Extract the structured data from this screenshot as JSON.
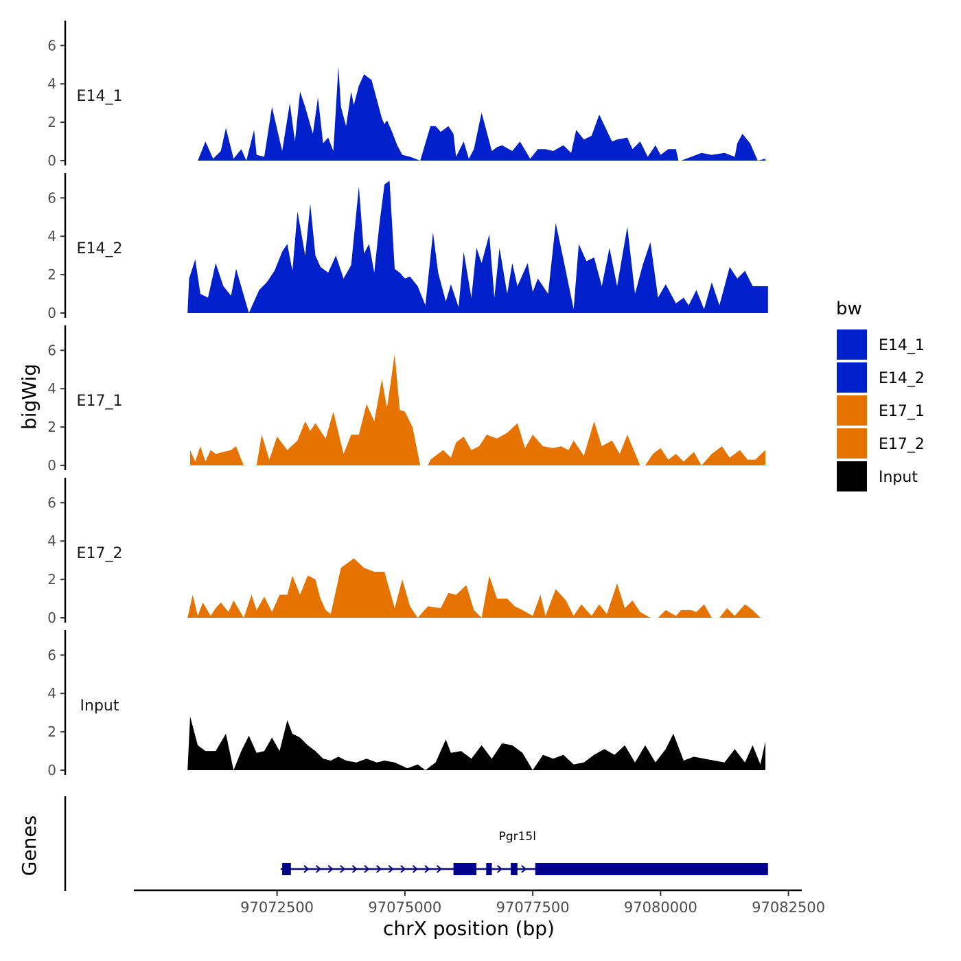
{
  "chart_data": {
    "type": "area",
    "ylabel": "bigWig",
    "xlabel": "chrX position (bp)",
    "ylim": [
      0,
      7.3
    ],
    "y_ticks": [
      0,
      2,
      4,
      6
    ],
    "y_tick_labels": [
      "0",
      "2",
      "4",
      "6"
    ],
    "xlim": [
      97069700,
      97082760
    ],
    "x_ticks": [
      97072500,
      97075000,
      97077500,
      97080000,
      97082500
    ],
    "x_tick_labels": [
      "97072500",
      "97075000",
      "97077500",
      "97080000",
      "97082500"
    ],
    "legend": {
      "title": "bw",
      "position": "right",
      "entries": [
        {
          "label": "E14_1",
          "color": "#0020CC"
        },
        {
          "label": "E14_2",
          "color": "#0020CC"
        },
        {
          "label": "E17_1",
          "color": "#E67300"
        },
        {
          "label": "E17_2",
          "color": "#E67300"
        },
        {
          "label": "Input",
          "color": "#000000"
        }
      ]
    },
    "series": [
      {
        "name": "E14_1",
        "color": "#0020CC",
        "x": [
          97070950,
          97071100,
          97071250,
          97071400,
          97071500,
          97071650,
          97071800,
          97071900,
          97072050,
          97072100,
          97072250,
          97072400,
          97072600,
          97072750,
          97072850,
          97072950,
          97073050,
          97073200,
          97073300,
          97073400,
          97073500,
          97073600,
          97073700,
          97073750,
          97073850,
          97073950,
          97074000,
          97074100,
          97074200,
          97074350,
          97074550,
          97074600,
          97074650,
          97074750,
          97074850,
          97074950,
          97075100,
          97075300,
          97075500,
          97075600,
          97075700,
          97075850,
          97075950,
          97076000,
          97076150,
          97076250,
          97076350,
          97076500,
          97076700,
          97076800,
          97076900,
          97077100,
          97077250,
          97077450,
          97077600,
          97077750,
          97077900,
          97078100,
          97078250,
          97078350,
          97078500,
          97078650,
          97078800,
          97079050,
          97079150,
          97079350,
          97079450,
          97079600,
          97079750,
          97079900,
          97080000,
          97080150,
          97080300,
          97080350,
          97080400,
          97080600,
          97080800,
          97081000,
          97081250,
          97081450,
          97081500,
          97081600,
          97081750,
          97081900,
          97082050
        ],
        "y": [
          0,
          1.0,
          0.1,
          0.5,
          1.7,
          0.1,
          0.6,
          0,
          1.6,
          0.3,
          0.2,
          2.8,
          0.5,
          3.0,
          1.0,
          3.6,
          2.8,
          1.4,
          3.3,
          0.9,
          1.2,
          0.5,
          4.9,
          2.8,
          1.8,
          3.6,
          2.9,
          3.9,
          4.5,
          4.2,
          2.2,
          1.9,
          2.1,
          1.5,
          0.8,
          0.3,
          0.2,
          0,
          1.8,
          1.8,
          1.5,
          1.8,
          1.4,
          0.2,
          1.0,
          0.1,
          0.6,
          2.5,
          0.5,
          0.7,
          0.8,
          0.5,
          1.0,
          0.1,
          0.6,
          0.6,
          0.5,
          0.8,
          0.4,
          1.6,
          1.1,
          1.3,
          2.4,
          1.0,
          1.1,
          1.2,
          0.6,
          1.0,
          0.2,
          0.8,
          0.3,
          0.6,
          0.6,
          0,
          0,
          0.2,
          0.4,
          0.3,
          0.4,
          0.2,
          0.9,
          1.4,
          0.9,
          0,
          0.1
        ]
      },
      {
        "name": "E14_2",
        "color": "#0020CC",
        "x": [
          97070750,
          97070780,
          97070900,
          97071000,
          97071150,
          97071300,
          97071450,
          97071600,
          97071700,
          97071950,
          97072150,
          97072300,
          97072450,
          97072600,
          97072700,
          97072800,
          97072900,
          97073050,
          97073150,
          97073250,
          97073350,
          97073500,
          97073650,
          97073800,
          97073950,
          97074100,
          97074200,
          97074300,
          97074400,
          97074500,
          97074600,
          97074700,
          97074800,
          97074900,
          97075000,
          97075100,
          97075250,
          97075400,
          97075550,
          97075650,
          97075800,
          97075900,
          97076050,
          97076150,
          97076300,
          97076400,
          97076500,
          97076650,
          97076750,
          97076850,
          97077000,
          97077100,
          97077200,
          97077400,
          97077500,
          97077600,
          97077800,
          97077950,
          97078100,
          97078300,
          97078400,
          97078550,
          97078700,
          97078850,
          97079000,
          97079150,
          97079350,
          97079500,
          97079650,
          97079800,
          97079950,
          97080100,
          97080300,
          97080450,
          97080550,
          97080700,
          97080850,
          97081000,
          97081150,
          97081350,
          97081500,
          97081650,
          97081800,
          97081950,
          97082100
        ],
        "y": [
          0,
          1.8,
          2.8,
          1.0,
          0.8,
          2.6,
          1.4,
          0.9,
          2.3,
          0,
          1.2,
          1.6,
          2.2,
          3.2,
          3.6,
          2.2,
          5.3,
          3.0,
          5.7,
          3.0,
          2.4,
          2.1,
          3.0,
          1.8,
          2.5,
          6.6,
          3.1,
          3.6,
          2.1,
          4.6,
          6.7,
          6.9,
          2.3,
          2.1,
          1.8,
          1.9,
          1.4,
          0.4,
          4.2,
          2.1,
          0.6,
          1.5,
          0.3,
          3.2,
          0.8,
          3.4,
          2.6,
          4.1,
          0.8,
          3.4,
          1.0,
          2.6,
          1.4,
          2.6,
          1.1,
          1.8,
          1.0,
          4.7,
          2.8,
          0.2,
          3.6,
          2.7,
          2.9,
          1.4,
          3.4,
          1.4,
          4.5,
          1.0,
          2.5,
          3.7,
          0.8,
          1.5,
          0.5,
          0.8,
          0.4,
          1.2,
          0.2,
          1.6,
          0.4,
          2.4,
          1.8,
          2.2,
          1.4,
          1.4,
          1.4
        ]
      },
      {
        "name": "E17_1",
        "color": "#E67300",
        "x": [
          97070800,
          97070900,
          97071000,
          97071100,
          97071200,
          97071300,
          97071450,
          97071600,
          97071700,
          97071800,
          97071850,
          97072100,
          97072200,
          97072350,
          97072500,
          97072700,
          97072900,
          97073050,
          97073150,
          97073250,
          97073450,
          97073600,
          97073800,
          97073950,
          97074100,
          97074250,
          97074400,
          97074550,
          97074650,
          97074800,
          97074900,
          97075000,
          97075150,
          97075300,
          97075450,
          97075500,
          97075750,
          97075900,
          97076000,
          97076150,
          97076300,
          97076450,
          97076600,
          97076800,
          97077000,
          97077200,
          97077350,
          97077500,
          97077700,
          97077900,
          97078050,
          97078200,
          97078300,
          97078500,
          97078700,
          97078850,
          97079050,
          97079200,
          97079350,
          97079600,
          97079700,
          97079850,
          97080000,
          97080150,
          97080300,
          97080450,
          97080650,
          97080800,
          97081000,
          97081200,
          97081350,
          97081550,
          97081700,
          97081850,
          97082050
        ],
        "y": [
          0.8,
          0.2,
          1.0,
          0.2,
          0.8,
          0.6,
          0.7,
          0.8,
          1.0,
          0.3,
          0,
          0,
          1.6,
          0.3,
          1.5,
          0.8,
          1.3,
          2.3,
          1.8,
          2.2,
          1.4,
          2.8,
          0.6,
          1.6,
          1.6,
          3.2,
          2.3,
          4.5,
          3.0,
          5.8,
          2.9,
          2.8,
          2.0,
          0,
          0,
          0.3,
          0.8,
          0.4,
          1.2,
          1.5,
          0.8,
          1.0,
          1.6,
          1.4,
          1.7,
          2.2,
          0.9,
          1.6,
          1.0,
          0.9,
          1.0,
          0.8,
          1.3,
          0.5,
          2.3,
          1.0,
          1.3,
          0.6,
          1.6,
          0,
          0,
          0.6,
          0.9,
          0.3,
          0.6,
          0.2,
          0.7,
          0,
          0.6,
          1.0,
          0.4,
          0.8,
          0.3,
          0.3,
          0.8
        ]
      },
      {
        "name": "E17_2",
        "color": "#E67300",
        "x": [
          97070750,
          97070850,
          97070950,
          97071050,
          97071200,
          97071300,
          97071400,
          97071550,
          97071650,
          97071850,
          97072000,
          97072100,
          97072250,
          97072400,
          97072550,
          97072700,
          97072800,
          97072950,
          97073100,
          97073250,
          97073350,
          97073450,
          97073550,
          97073750,
          97073850,
          97074000,
          97074200,
          97074400,
          97074600,
          97074800,
          97074950,
          97075100,
          97075250,
          97075450,
          97075700,
          97075850,
          97076000,
          97076200,
          97076350,
          97076500,
          97076650,
          97076800,
          97077000,
          97077150,
          97077300,
          97077500,
          97077650,
          97077750,
          97077950,
          97078150,
          97078300,
          97078450,
          97078650,
          97078800,
          97078950,
          97079150,
          97079300,
          97079450,
          97079600,
          97079800,
          97079950,
          97080100,
          97080300,
          97080400,
          97080600,
          97080700,
          97080850,
          97081000,
          97081150,
          97081300,
          97081450,
          97081650,
          97081800,
          97081950
        ],
        "y": [
          0,
          1.2,
          0.1,
          0.8,
          0.1,
          0.5,
          0.8,
          0.3,
          0.9,
          0,
          1.2,
          0.4,
          1.1,
          0.3,
          1.2,
          1.2,
          2.2,
          1.2,
          2.2,
          2.0,
          1.0,
          0.4,
          0.2,
          2.6,
          2.8,
          3.1,
          2.6,
          2.4,
          2.4,
          0.5,
          2.0,
          0.6,
          0,
          0.6,
          0.5,
          1.3,
          1.2,
          1.7,
          0.4,
          0,
          2.2,
          1.0,
          1.0,
          0.6,
          0.4,
          0.1,
          1.2,
          0.1,
          1.5,
          0.9,
          0.1,
          0.7,
          0.1,
          0.7,
          0.2,
          1.8,
          0.5,
          0.9,
          0.3,
          0,
          0,
          0.4,
          0.1,
          0.4,
          0.4,
          0.3,
          0.7,
          0,
          0,
          0.5,
          0.1,
          0.7,
          0.4,
          0
        ]
      },
      {
        "name": "Input",
        "color": "#000000",
        "x": [
          97070750,
          97070800,
          97070950,
          97071100,
          97071300,
          97071500,
          97071650,
          97071800,
          97071950,
          97072100,
          97072250,
          97072400,
          97072550,
          97072700,
          97072800,
          97072950,
          97073100,
          97073250,
          97073400,
          97073550,
          97073700,
          97073850,
          97074050,
          97074250,
          97074450,
          97074600,
          97074800,
          97075050,
          97075250,
          97075400,
          97075600,
          97075800,
          97075900,
          97076100,
          97076300,
          97076500,
          97076700,
          97076900,
          97077100,
          97077300,
          97077500,
          97077700,
          97077900,
          97078100,
          97078300,
          97078500,
          97078700,
          97078900,
          97079100,
          97079300,
          97079500,
          97079700,
          97079900,
          97080100,
          97080250,
          97080450,
          97080650,
          97080850,
          97081050,
          97081250,
          97081450,
          97081650,
          97081800,
          97081950,
          97082050
        ],
        "y": [
          0,
          2.8,
          1.3,
          1.0,
          1.0,
          1.9,
          0,
          1.0,
          1.8,
          0.9,
          1.0,
          1.7,
          1.0,
          2.6,
          1.9,
          1.7,
          1.3,
          1.0,
          0.6,
          0.5,
          0.7,
          0.5,
          0.4,
          0.6,
          0.4,
          0.5,
          0.4,
          0.1,
          0.3,
          0,
          0.4,
          1.6,
          0.9,
          1.0,
          0.6,
          1.3,
          0.6,
          1.4,
          1.3,
          0.9,
          0,
          0.8,
          0.6,
          0.8,
          0.3,
          0.4,
          0.8,
          1.1,
          0.8,
          1.3,
          0.4,
          1.3,
          0.4,
          1.1,
          1.9,
          0.5,
          0.7,
          0.6,
          0.5,
          0.4,
          1.1,
          0.4,
          1.3,
          0.3,
          1.5
        ]
      }
    ],
    "genes": {
      "track_label": "Genes",
      "name": "Pgr15l",
      "strand": "+",
      "start": 97072570,
      "end": 97082100,
      "exons": [
        [
          97072600,
          97072770
        ],
        [
          97075950,
          97076400
        ],
        [
          97076590,
          97076700
        ],
        [
          97077070,
          97077200
        ],
        [
          97077550,
          97082100
        ]
      ],
      "color": "#00008B"
    }
  }
}
